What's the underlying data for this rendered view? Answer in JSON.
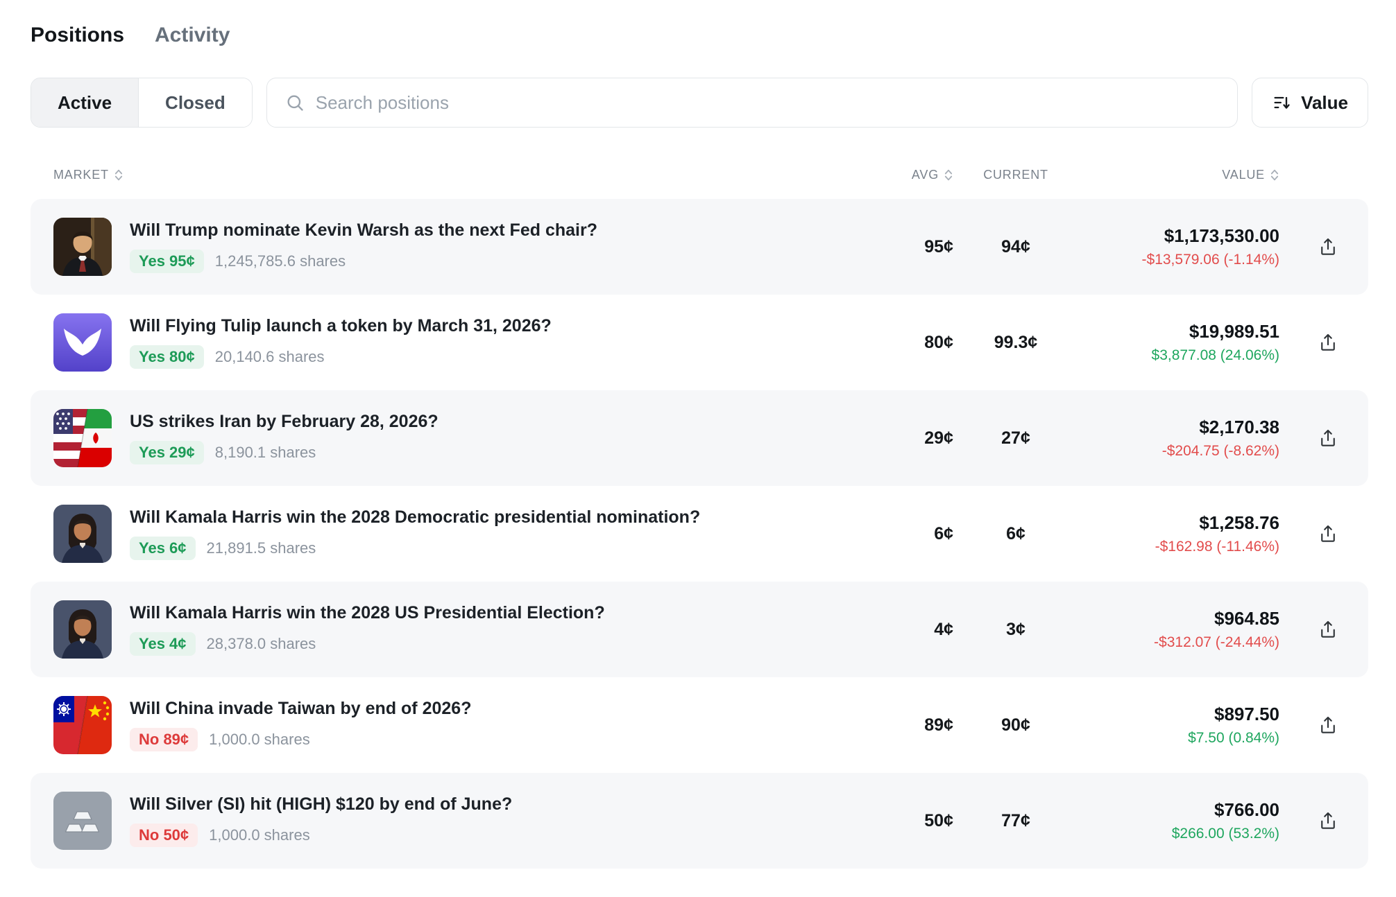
{
  "header": {
    "tabs": [
      {
        "id": "positions",
        "label": "Positions",
        "active": true
      },
      {
        "id": "activity",
        "label": "Activity",
        "active": false
      }
    ]
  },
  "controls": {
    "segments": [
      {
        "id": "active",
        "label": "Active",
        "selected": true
      },
      {
        "id": "closed",
        "label": "Closed",
        "selected": false
      }
    ],
    "search": {
      "placeholder": "Search positions"
    },
    "sort": {
      "label": "Value",
      "icon": "sort-descending-icon"
    }
  },
  "table": {
    "columns": [
      {
        "id": "market",
        "label": "MARKET",
        "sortable": true
      },
      {
        "id": "avg",
        "label": "AVG",
        "sortable": true
      },
      {
        "id": "current",
        "label": "CURRENT",
        "sortable": false
      },
      {
        "id": "value",
        "label": "VALUE",
        "sortable": true
      }
    ],
    "rows": [
      {
        "avatar": "kevin-warsh-photo",
        "title": "Will Trump nominate Kevin Warsh as the next Fed chair?",
        "badge": "Yes 95¢",
        "badge_kind": "yes",
        "shares": "1,245,785.6 shares",
        "avg": "95¢",
        "current": "94¢",
        "value": "$1,173,530.00",
        "change": "-$13,579.06 (-1.14%)",
        "trend": "down"
      },
      {
        "avatar": "flying-tulip-logo",
        "title": "Will Flying Tulip launch a token by March 31, 2026?",
        "badge": "Yes 80¢",
        "badge_kind": "yes",
        "shares": "20,140.6 shares",
        "avg": "80¢",
        "current": "99.3¢",
        "value": "$19,989.51",
        "change": "$3,877.08 (24.06%)",
        "trend": "up"
      },
      {
        "avatar": "us-iran-flags",
        "title": "US strikes Iran by February 28, 2026?",
        "badge": "Yes 29¢",
        "badge_kind": "yes",
        "shares": "8,190.1 shares",
        "avg": "29¢",
        "current": "27¢",
        "value": "$2,170.38",
        "change": "-$204.75 (-8.62%)",
        "trend": "down"
      },
      {
        "avatar": "kamala-harris-photo",
        "title": "Will Kamala Harris win the 2028 Democratic presidential nomination?",
        "badge": "Yes 6¢",
        "badge_kind": "yes",
        "shares": "21,891.5 shares",
        "avg": "6¢",
        "current": "6¢",
        "value": "$1,258.76",
        "change": "-$162.98 (-11.46%)",
        "trend": "down"
      },
      {
        "avatar": "kamala-harris-photo",
        "title": "Will Kamala Harris win the 2028 US Presidential Election?",
        "badge": "Yes 4¢",
        "badge_kind": "yes",
        "shares": "28,378.0 shares",
        "avg": "4¢",
        "current": "3¢",
        "value": "$964.85",
        "change": "-$312.07 (-24.44%)",
        "trend": "down"
      },
      {
        "avatar": "taiwan-china-flags",
        "title": "Will China invade Taiwan by end of 2026?",
        "badge": "No 89¢",
        "badge_kind": "no",
        "shares": "1,000.0 shares",
        "avg": "89¢",
        "current": "90¢",
        "value": "$897.50",
        "change": "$7.50 (0.84%)",
        "trend": "up"
      },
      {
        "avatar": "silver-bars-icon",
        "title": "Will Silver (SI) hit (HIGH) $120 by end of June?",
        "badge": "No 50¢",
        "badge_kind": "no",
        "shares": "1,000.0 shares",
        "avg": "50¢",
        "current": "77¢",
        "value": "$766.00",
        "change": "$266.00 (53.2%)",
        "trend": "up"
      }
    ]
  },
  "colors": {
    "positive": "#1ea65e",
    "negative": "#e24c4c",
    "yes_badge_bg": "#e7f4ed",
    "yes_badge_text": "#1d9b57",
    "no_badge_bg": "#fcecec",
    "no_badge_text": "#dd3a3a"
  }
}
